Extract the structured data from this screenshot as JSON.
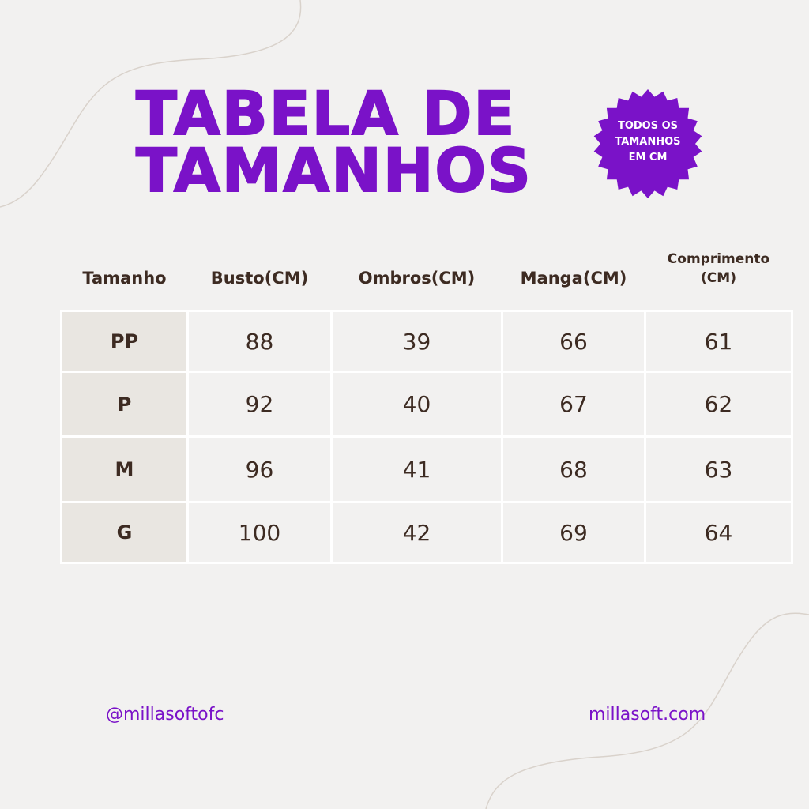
{
  "header": {
    "title_lines": [
      "TABELA DE",
      "TAMANHOS"
    ],
    "badge_lines": [
      "TODOS OS",
      "TAMANHOS",
      "EM CM"
    ]
  },
  "table": {
    "headers": [
      "Tamanho",
      "Busto(CM)",
      "Ombros(CM)",
      "Manga(CM)",
      "Comprimento (CM)"
    ],
    "rows": [
      [
        "PP",
        88,
        39,
        66,
        61
      ],
      [
        "P",
        92,
        40,
        67,
        62
      ],
      [
        "M",
        96,
        41,
        68,
        63
      ],
      [
        "G",
        100,
        42,
        69,
        64
      ]
    ]
  },
  "footer": {
    "instagram": "@millasoftofc",
    "website": "millasoft.com"
  }
}
